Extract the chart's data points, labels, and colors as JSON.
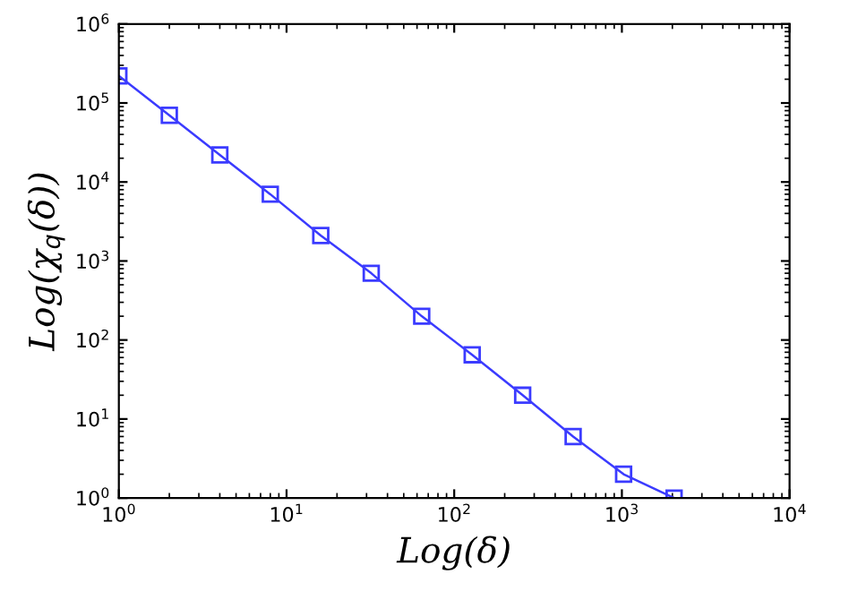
{
  "chart_data": {
    "type": "line",
    "xlabel": "Log(δ)",
    "ylabel": "Log(χ$_{q}$(δ))",
    "log": "xy",
    "marker": "square",
    "line_style": "solid",
    "grid": false,
    "legend": false,
    "xlim": [
      1,
      10000
    ],
    "ylim": [
      1,
      1000000
    ],
    "xticks": [
      {
        "value": 1,
        "label": "10$^{0}$"
      },
      {
        "value": 10,
        "label": "10$^{1}$"
      },
      {
        "value": 100,
        "label": "10$^{2}$"
      },
      {
        "value": 1000,
        "label": "10$^{3}$"
      },
      {
        "value": 10000,
        "label": "10$^{4}$"
      }
    ],
    "yticks": [
      {
        "value": 1,
        "label": "10$^{0}$"
      },
      {
        "value": 10,
        "label": "10$^{1}$"
      },
      {
        "value": 100,
        "label": "10$^{2}$"
      },
      {
        "value": 1000,
        "label": "10$^{3}$"
      },
      {
        "value": 10000,
        "label": "10$^{4}$"
      },
      {
        "value": 100000,
        "label": "10$^{5}$"
      },
      {
        "value": 1000000,
        "label": "10$^{6}$"
      }
    ],
    "series": [
      {
        "color": "#3b3bff",
        "x": [
          1,
          2,
          4,
          8,
          16,
          32,
          64,
          128,
          256,
          512,
          1024,
          2048
        ],
        "values": [
          220000,
          70000,
          22000,
          7000,
          2100,
          700,
          200,
          65,
          20,
          6,
          2,
          1
        ]
      }
    ]
  }
}
